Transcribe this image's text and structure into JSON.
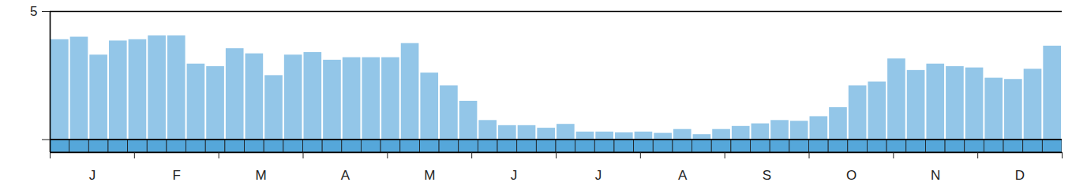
{
  "chart_data": {
    "type": "bar",
    "x": [
      1,
      2,
      3,
      4,
      5,
      6,
      7,
      8,
      9,
      10,
      11,
      12,
      13,
      14,
      15,
      16,
      17,
      18,
      19,
      20,
      21,
      22,
      23,
      24,
      25,
      26,
      27,
      28,
      29,
      30,
      31,
      32,
      33,
      34,
      35,
      36,
      37,
      38,
      39,
      40,
      41,
      42,
      43,
      44,
      45,
      46,
      47,
      48,
      49,
      50,
      51,
      52
    ],
    "values": [
      3.9,
      4.0,
      3.3,
      3.85,
      3.9,
      4.05,
      4.05,
      2.95,
      2.85,
      3.55,
      3.35,
      2.5,
      3.3,
      3.4,
      3.1,
      3.2,
      3.2,
      3.2,
      3.75,
      2.6,
      2.1,
      1.5,
      0.75,
      0.55,
      0.55,
      0.45,
      0.6,
      0.3,
      0.3,
      0.27,
      0.3,
      0.25,
      0.4,
      0.2,
      0.4,
      0.52,
      0.62,
      0.75,
      0.72,
      0.9,
      1.25,
      2.1,
      2.25,
      3.15,
      2.7,
      2.95,
      2.85,
      2.8,
      2.4,
      2.35,
      2.75,
      3.65
    ],
    "color": "#93c6e8",
    "xlim": [
      0.5,
      52.5
    ],
    "xticks": [
      {
        "value": 2.67,
        "label": "J"
      },
      {
        "value": 7.0,
        "label": "F"
      },
      {
        "value": 11.33,
        "label": "M"
      },
      {
        "value": 15.67,
        "label": "A"
      },
      {
        "value": 20.0,
        "label": "M"
      },
      {
        "value": 24.33,
        "label": "J"
      },
      {
        "value": 28.67,
        "label": "J"
      },
      {
        "value": 33.0,
        "label": "A"
      },
      {
        "value": 37.33,
        "label": "S"
      },
      {
        "value": 41.67,
        "label": "O"
      },
      {
        "value": 46.0,
        "label": "N"
      },
      {
        "value": 50.33,
        "label": "D"
      }
    ],
    "ylim": [
      -0.5,
      5
    ],
    "yticks": [
      {
        "value": 0,
        "label": null
      },
      5
    ],
    "grid": false
  }
}
